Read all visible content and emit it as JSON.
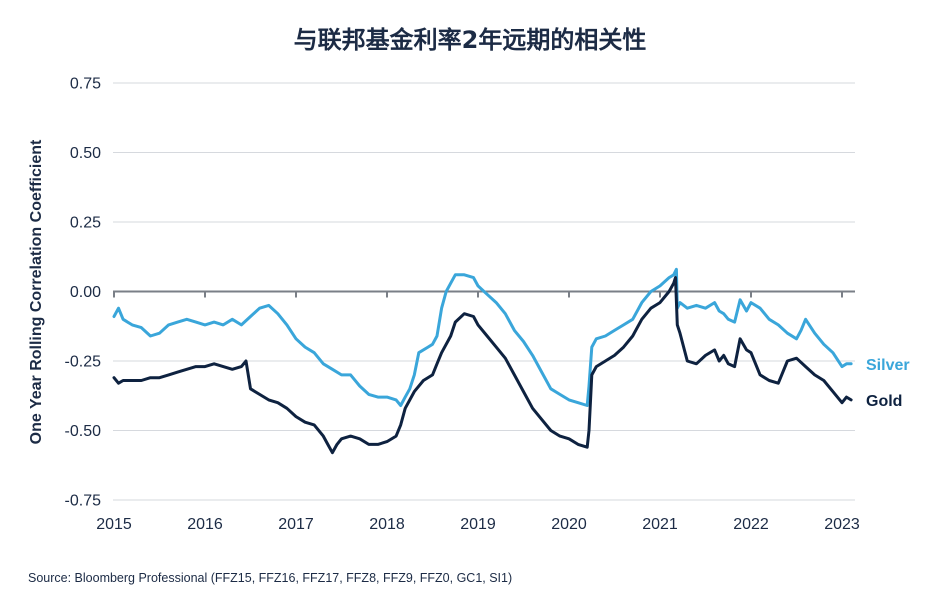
{
  "chart_data": {
    "type": "line",
    "title": "与联邦基金利率2年远期的相关性",
    "ylabel": "One Year Rolling Correlation Coefficient",
    "xlabel": "",
    "xlim": [
      2015,
      2023.1
    ],
    "ylim": [
      -0.75,
      0.75
    ],
    "yticks": [
      "0.75",
      "0.50",
      "0.25",
      "0.00",
      "-0.25",
      "-0.50",
      "-0.75"
    ],
    "xticks": [
      "2015",
      "2016",
      "2017",
      "2018",
      "2019",
      "2020",
      "2021",
      "2022",
      "2023"
    ],
    "grid": true,
    "legend": "inline-right",
    "series": [
      {
        "name": "Silver",
        "color": "#3aa6da",
        "points": [
          [
            2015.0,
            -0.09
          ],
          [
            2015.05,
            -0.06
          ],
          [
            2015.1,
            -0.1
          ],
          [
            2015.2,
            -0.12
          ],
          [
            2015.3,
            -0.13
          ],
          [
            2015.4,
            -0.16
          ],
          [
            2015.5,
            -0.15
          ],
          [
            2015.6,
            -0.12
          ],
          [
            2015.7,
            -0.11
          ],
          [
            2015.8,
            -0.1
          ],
          [
            2015.9,
            -0.11
          ],
          [
            2016.0,
            -0.12
          ],
          [
            2016.1,
            -0.11
          ],
          [
            2016.2,
            -0.12
          ],
          [
            2016.3,
            -0.1
          ],
          [
            2016.4,
            -0.12
          ],
          [
            2016.5,
            -0.09
          ],
          [
            2016.6,
            -0.06
          ],
          [
            2016.7,
            -0.05
          ],
          [
            2016.8,
            -0.08
          ],
          [
            2016.9,
            -0.12
          ],
          [
            2017.0,
            -0.17
          ],
          [
            2017.1,
            -0.2
          ],
          [
            2017.2,
            -0.22
          ],
          [
            2017.3,
            -0.26
          ],
          [
            2017.4,
            -0.28
          ],
          [
            2017.5,
            -0.3
          ],
          [
            2017.6,
            -0.3
          ],
          [
            2017.7,
            -0.34
          ],
          [
            2017.8,
            -0.37
          ],
          [
            2017.9,
            -0.38
          ],
          [
            2018.0,
            -0.38
          ],
          [
            2018.1,
            -0.39
          ],
          [
            2018.15,
            -0.41
          ],
          [
            2018.2,
            -0.38
          ],
          [
            2018.25,
            -0.35
          ],
          [
            2018.3,
            -0.3
          ],
          [
            2018.35,
            -0.22
          ],
          [
            2018.45,
            -0.2
          ],
          [
            2018.5,
            -0.19
          ],
          [
            2018.55,
            -0.16
          ],
          [
            2018.6,
            -0.06
          ],
          [
            2018.65,
            0.0
          ],
          [
            2018.7,
            0.03
          ],
          [
            2018.75,
            0.06
          ],
          [
            2018.85,
            0.06
          ],
          [
            2018.95,
            0.05
          ],
          [
            2019.0,
            0.02
          ],
          [
            2019.1,
            -0.01
          ],
          [
            2019.2,
            -0.04
          ],
          [
            2019.3,
            -0.08
          ],
          [
            2019.4,
            -0.14
          ],
          [
            2019.5,
            -0.18
          ],
          [
            2019.6,
            -0.23
          ],
          [
            2019.7,
            -0.29
          ],
          [
            2019.8,
            -0.35
          ],
          [
            2019.9,
            -0.37
          ],
          [
            2020.0,
            -0.39
          ],
          [
            2020.1,
            -0.4
          ],
          [
            2020.2,
            -0.41
          ],
          [
            2020.22,
            -0.34
          ],
          [
            2020.25,
            -0.2
          ],
          [
            2020.3,
            -0.17
          ],
          [
            2020.4,
            -0.16
          ],
          [
            2020.5,
            -0.14
          ],
          [
            2020.6,
            -0.12
          ],
          [
            2020.7,
            -0.1
          ],
          [
            2020.8,
            -0.04
          ],
          [
            2020.9,
            0.0
          ],
          [
            2021.0,
            0.02
          ],
          [
            2021.1,
            0.05
          ],
          [
            2021.15,
            0.06
          ],
          [
            2021.18,
            0.08
          ],
          [
            2021.19,
            -0.06
          ],
          [
            2021.22,
            -0.04
          ],
          [
            2021.3,
            -0.06
          ],
          [
            2021.4,
            -0.05
          ],
          [
            2021.5,
            -0.06
          ],
          [
            2021.6,
            -0.04
          ],
          [
            2021.65,
            -0.07
          ],
          [
            2021.7,
            -0.08
          ],
          [
            2021.75,
            -0.1
          ],
          [
            2021.82,
            -0.11
          ],
          [
            2021.88,
            -0.03
          ],
          [
            2021.95,
            -0.07
          ],
          [
            2022.0,
            -0.04
          ],
          [
            2022.1,
            -0.06
          ],
          [
            2022.2,
            -0.1
          ],
          [
            2022.3,
            -0.12
          ],
          [
            2022.4,
            -0.15
          ],
          [
            2022.5,
            -0.17
          ],
          [
            2022.55,
            -0.14
          ],
          [
            2022.6,
            -0.1
          ],
          [
            2022.7,
            -0.15
          ],
          [
            2022.8,
            -0.19
          ],
          [
            2022.9,
            -0.22
          ],
          [
            2023.0,
            -0.27
          ],
          [
            2023.05,
            -0.26
          ],
          [
            2023.1,
            -0.26
          ]
        ]
      },
      {
        "name": "Gold",
        "color": "#0e2240",
        "points": [
          [
            2015.0,
            -0.31
          ],
          [
            2015.05,
            -0.33
          ],
          [
            2015.1,
            -0.32
          ],
          [
            2015.2,
            -0.32
          ],
          [
            2015.3,
            -0.32
          ],
          [
            2015.4,
            -0.31
          ],
          [
            2015.5,
            -0.31
          ],
          [
            2015.6,
            -0.3
          ],
          [
            2015.7,
            -0.29
          ],
          [
            2015.8,
            -0.28
          ],
          [
            2015.9,
            -0.27
          ],
          [
            2016.0,
            -0.27
          ],
          [
            2016.1,
            -0.26
          ],
          [
            2016.2,
            -0.27
          ],
          [
            2016.3,
            -0.28
          ],
          [
            2016.4,
            -0.27
          ],
          [
            2016.45,
            -0.25
          ],
          [
            2016.5,
            -0.35
          ],
          [
            2016.6,
            -0.37
          ],
          [
            2016.7,
            -0.39
          ],
          [
            2016.8,
            -0.4
          ],
          [
            2016.9,
            -0.42
          ],
          [
            2017.0,
            -0.45
          ],
          [
            2017.1,
            -0.47
          ],
          [
            2017.2,
            -0.48
          ],
          [
            2017.3,
            -0.52
          ],
          [
            2017.35,
            -0.55
          ],
          [
            2017.4,
            -0.58
          ],
          [
            2017.45,
            -0.55
          ],
          [
            2017.5,
            -0.53
          ],
          [
            2017.6,
            -0.52
          ],
          [
            2017.7,
            -0.53
          ],
          [
            2017.8,
            -0.55
          ],
          [
            2017.9,
            -0.55
          ],
          [
            2018.0,
            -0.54
          ],
          [
            2018.1,
            -0.52
          ],
          [
            2018.15,
            -0.48
          ],
          [
            2018.2,
            -0.42
          ],
          [
            2018.3,
            -0.36
          ],
          [
            2018.4,
            -0.32
          ],
          [
            2018.5,
            -0.3
          ],
          [
            2018.55,
            -0.26
          ],
          [
            2018.6,
            -0.22
          ],
          [
            2018.7,
            -0.16
          ],
          [
            2018.75,
            -0.11
          ],
          [
            2018.85,
            -0.08
          ],
          [
            2018.95,
            -0.09
          ],
          [
            2019.0,
            -0.12
          ],
          [
            2019.1,
            -0.16
          ],
          [
            2019.2,
            -0.2
          ],
          [
            2019.3,
            -0.24
          ],
          [
            2019.4,
            -0.3
          ],
          [
            2019.5,
            -0.36
          ],
          [
            2019.6,
            -0.42
          ],
          [
            2019.7,
            -0.46
          ],
          [
            2019.8,
            -0.5
          ],
          [
            2019.9,
            -0.52
          ],
          [
            2020.0,
            -0.53
          ],
          [
            2020.1,
            -0.55
          ],
          [
            2020.2,
            -0.56
          ],
          [
            2020.22,
            -0.5
          ],
          [
            2020.25,
            -0.3
          ],
          [
            2020.3,
            -0.27
          ],
          [
            2020.4,
            -0.25
          ],
          [
            2020.5,
            -0.23
          ],
          [
            2020.6,
            -0.2
          ],
          [
            2020.7,
            -0.16
          ],
          [
            2020.8,
            -0.1
          ],
          [
            2020.9,
            -0.06
          ],
          [
            2021.0,
            -0.04
          ],
          [
            2021.1,
            0.0
          ],
          [
            2021.15,
            0.03
          ],
          [
            2021.17,
            0.05
          ],
          [
            2021.19,
            -0.12
          ],
          [
            2021.22,
            -0.15
          ],
          [
            2021.3,
            -0.25
          ],
          [
            2021.4,
            -0.26
          ],
          [
            2021.5,
            -0.23
          ],
          [
            2021.6,
            -0.21
          ],
          [
            2021.65,
            -0.25
          ],
          [
            2021.7,
            -0.23
          ],
          [
            2021.75,
            -0.26
          ],
          [
            2021.82,
            -0.27
          ],
          [
            2021.88,
            -0.17
          ],
          [
            2021.95,
            -0.21
          ],
          [
            2022.0,
            -0.22
          ],
          [
            2022.1,
            -0.3
          ],
          [
            2022.2,
            -0.32
          ],
          [
            2022.3,
            -0.33
          ],
          [
            2022.4,
            -0.25
          ],
          [
            2022.5,
            -0.24
          ],
          [
            2022.6,
            -0.27
          ],
          [
            2022.7,
            -0.3
          ],
          [
            2022.8,
            -0.32
          ],
          [
            2022.9,
            -0.36
          ],
          [
            2023.0,
            -0.4
          ],
          [
            2023.05,
            -0.38
          ],
          [
            2023.1,
            -0.39
          ]
        ]
      }
    ]
  },
  "source": "Source: Bloomberg Professional (FFZ15, FFZ16, FFZ17, FFZ8, FFZ9, FFZ0, GC1, SI1)"
}
